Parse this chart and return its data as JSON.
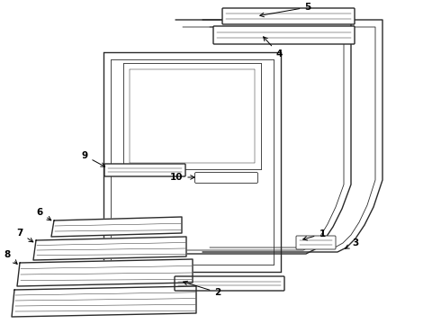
{
  "bg_color": "#ffffff",
  "line_color": "#2a2a2a",
  "lw_main": 1.0,
  "lw_thin": 0.6,
  "lw_vt": 0.35
}
